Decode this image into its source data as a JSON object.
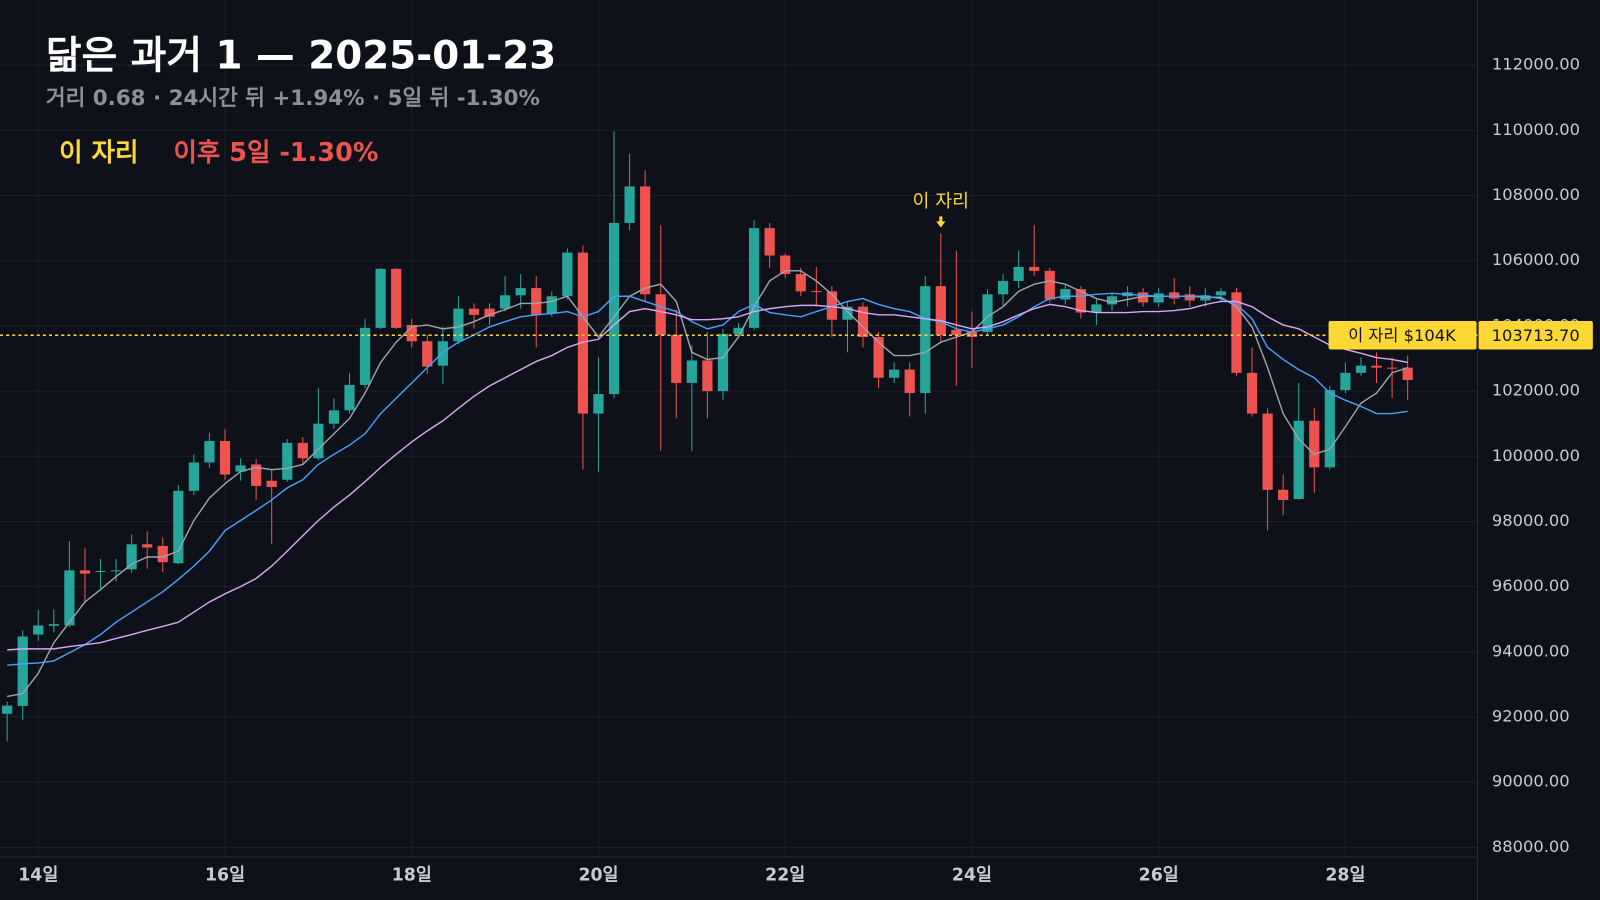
{
  "chart_data": {
    "type": "candlestick",
    "title": "닮은 과거 1 — 2025-01-23",
    "subtitle": "거리 0.68 · 24시간 뒤 +1.94% · 5일 뒤 -1.30%",
    "legend_label": "이 자리",
    "legend_note": "이후 5일 -1.30%",
    "categories": [
      null,
      null,
      "14일",
      null,
      null,
      null,
      null,
      null,
      null,
      null,
      null,
      null,
      null,
      null,
      "16일",
      null,
      null,
      null,
      null,
      null,
      null,
      null,
      null,
      null,
      null,
      null,
      "18일",
      null,
      null,
      null,
      null,
      null,
      null,
      null,
      null,
      null,
      null,
      null,
      "20일",
      null,
      null,
      null,
      null,
      null,
      null,
      null,
      null,
      null,
      null,
      null,
      "22일",
      null,
      null,
      null,
      null,
      null,
      null,
      null,
      null,
      null,
      null,
      null,
      "24일",
      null,
      null,
      null,
      null,
      null,
      null,
      null,
      null,
      null,
      null,
      null,
      "26일",
      null,
      null,
      null,
      null,
      null,
      null,
      null,
      null,
      null,
      null,
      null,
      "28일",
      null,
      null,
      null,
      null
    ],
    "open": [
      92100,
      92340,
      94530,
      94800,
      94810,
      96500,
      96450,
      96480,
      96530,
      97300,
      97250,
      96720,
      98940,
      99810,
      100470,
      99530,
      99750,
      99250,
      99280,
      100410,
      99940,
      101000,
      101410,
      102190,
      103940,
      105750,
      104030,
      103530,
      102780,
      103530,
      104530,
      104530,
      104530,
      104940,
      105160,
      104380,
      104910,
      106250,
      101310,
      101910,
      107160,
      108280,
      104970,
      103720,
      102250,
      102940,
      102000,
      103750,
      103940,
      107000,
      106160,
      105590,
      105070,
      105060,
      104190,
      104590,
      103660,
      102410,
      102660,
      101940,
      105220,
      103880,
      103810,
      103810,
      104970,
      105380,
      105810,
      105690,
      104810,
      105130,
      104410,
      104660,
      104910,
      105030,
      104720,
      105030,
      104970,
      104780,
      104940,
      105030,
      102560,
      101310,
      98970,
      98690,
      101090,
      99660,
      102030,
      102560,
      102780,
      102720,
      102720
    ],
    "high": [
      92470,
      94660,
      95280,
      95300,
      97400,
      97200,
      96850,
      96850,
      97600,
      97700,
      97500,
      99120,
      100060,
      100720,
      100840,
      99940,
      99910,
      99590,
      100530,
      100590,
      102090,
      101780,
      102560,
      104220,
      105780,
      105780,
      104220,
      103720,
      103970,
      104910,
      104690,
      104690,
      105530,
      105590,
      105530,
      105060,
      106380,
      106470,
      103030,
      109970,
      109280,
      108780,
      107090,
      104500,
      103410,
      103810,
      103910,
      104090,
      107250,
      107160,
      106220,
      105780,
      105810,
      105220,
      104720,
      104720,
      103810,
      102880,
      102880,
      105530,
      106840,
      106310,
      104440,
      105130,
      105590,
      106310,
      107090,
      105780,
      105280,
      105220,
      104840,
      105030,
      105220,
      105160,
      105160,
      105470,
      105220,
      105160,
      105160,
      105160,
      103340,
      101470,
      99440,
      102250,
      101470,
      102160,
      102880,
      103030,
      103190,
      103030,
      103090
    ],
    "low": [
      91250,
      91900,
      94340,
      94600,
      94750,
      95500,
      95900,
      96150,
      96430,
      96550,
      96450,
      96690,
      98810,
      99650,
      99280,
      99250,
      98660,
      97310,
      99220,
      99750,
      99880,
      100840,
      101310,
      102090,
      103910,
      103910,
      103340,
      102530,
      102220,
      103440,
      103910,
      104030,
      104440,
      104530,
      103340,
      104280,
      104810,
      99590,
      99530,
      101780,
      106940,
      104750,
      100160,
      101160,
      100160,
      101160,
      101720,
      103660,
      103880,
      105780,
      105470,
      104910,
      104590,
      103660,
      103190,
      103340,
      102090,
      102250,
      101220,
      101310,
      103470,
      102160,
      102720,
      103720,
      104590,
      105160,
      105530,
      104720,
      104660,
      104220,
      104030,
      104470,
      104590,
      104590,
      104590,
      104660,
      104590,
      104590,
      104720,
      102470,
      101220,
      97720,
      98190,
      98660,
      98880,
      99590,
      101940,
      102470,
      102250,
      101780,
      101720
    ],
    "close": [
      92350,
      94470,
      94810,
      94850,
      96500,
      96400,
      96480,
      96500,
      97300,
      97200,
      96750,
      98940,
      99810,
      100470,
      99440,
      99720,
      99090,
      99060,
      100410,
      99940,
      101000,
      101410,
      102190,
      103940,
      105750,
      103940,
      103530,
      102750,
      103530,
      104530,
      104340,
      104280,
      104940,
      105160,
      104340,
      104910,
      106250,
      101310,
      101910,
      107160,
      108280,
      104970,
      103720,
      102250,
      102940,
      102000,
      103750,
      103940,
      107000,
      106160,
      105590,
      105060,
      105060,
      104190,
      104590,
      103660,
      102410,
      102660,
      101940,
      105220,
      103720,
      103720,
      103660,
      104970,
      105380,
      105810,
      105690,
      104810,
      105130,
      104410,
      104660,
      104910,
      105030,
      104720,
      105000,
      104840,
      104780,
      104940,
      105060,
      102560,
      101310,
      98970,
      98660,
      101090,
      99660,
      102030,
      102560,
      102780,
      102720,
      102690,
      102340
    ],
    "up_color": "#26a69a",
    "down_color": "#ef5350",
    "lines": [
      {
        "color": "#9ea3ab",
        "values": [
          92630,
          92720,
          93340,
          94280,
          94910,
          95530,
          95910,
          96310,
          96690,
          96910,
          96910,
          97090,
          98030,
          98720,
          99160,
          99530,
          99660,
          99590,
          99630,
          99750,
          100220,
          100690,
          101160,
          101940,
          102880,
          103500,
          103970,
          104030,
          103910,
          103970,
          104130,
          104340,
          104500,
          104690,
          104690,
          104750,
          104910,
          104280,
          103660,
          104280,
          104910,
          105160,
          105280,
          104750,
          103190,
          102970,
          103030,
          103660,
          104590,
          105380,
          105690,
          105690,
          105380,
          104970,
          104440,
          103970,
          103500,
          103090,
          103090,
          103190,
          103500,
          103660,
          103810,
          104280,
          104590,
          105060,
          105280,
          105380,
          105280,
          105060,
          104840,
          104720,
          104810,
          104910,
          104910,
          104910,
          104910,
          104880,
          104880,
          104590,
          103970,
          102720,
          101310,
          100530,
          100060,
          100220,
          100910,
          101630,
          101940,
          102560,
          102720
        ]
      },
      {
        "color": "#4a9eff",
        "values": [
          93590,
          93630,
          93660,
          93720,
          93970,
          94220,
          94530,
          94910,
          95220,
          95530,
          95840,
          96220,
          96630,
          97090,
          97720,
          98030,
          98340,
          98660,
          99030,
          99280,
          99750,
          100060,
          100340,
          100690,
          101310,
          101780,
          102250,
          102720,
          103190,
          103500,
          103720,
          103970,
          104130,
          104280,
          104340,
          104380,
          104440,
          104280,
          104440,
          104910,
          104910,
          104750,
          104590,
          104440,
          104130,
          103910,
          104030,
          104440,
          104660,
          104410,
          104340,
          104280,
          104440,
          104590,
          104750,
          104840,
          104660,
          104530,
          104440,
          104220,
          104130,
          103910,
          103810,
          103910,
          104030,
          104280,
          104590,
          104840,
          104910,
          104910,
          104970,
          105000,
          104970,
          104940,
          104910,
          104910,
          104910,
          104910,
          104840,
          104660,
          104220,
          103340,
          102970,
          102660,
          102410,
          101940,
          101720,
          101530,
          101310,
          101310,
          101380
        ]
      },
      {
        "color": "#d7a6f0",
        "values": [
          94060,
          94090,
          94090,
          94090,
          94160,
          94220,
          94280,
          94410,
          94530,
          94660,
          94780,
          94910,
          95220,
          95530,
          95780,
          96000,
          96250,
          96630,
          97090,
          97560,
          98030,
          98440,
          98810,
          99220,
          99660,
          100060,
          100440,
          100780,
          101090,
          101470,
          101840,
          102160,
          102410,
          102660,
          102910,
          103090,
          103340,
          103500,
          103590,
          104030,
          104440,
          104530,
          104440,
          104340,
          104190,
          104190,
          104220,
          104280,
          104440,
          104530,
          104590,
          104630,
          104630,
          104590,
          104530,
          104410,
          104340,
          104340,
          104280,
          104220,
          104160,
          104030,
          103910,
          103970,
          104130,
          104340,
          104530,
          104660,
          104590,
          104470,
          104410,
          104410,
          104410,
          104440,
          104440,
          104470,
          104530,
          104660,
          104750,
          104750,
          104590,
          104280,
          104030,
          103910,
          103660,
          103410,
          103280,
          103160,
          103030,
          102970,
          102880
        ]
      }
    ],
    "ylim": [
      87700,
      114000
    ],
    "yticks": [
      {
        "value": 88000,
        "label": "88000.00"
      },
      {
        "value": 90000,
        "label": "90000.00"
      },
      {
        "value": 92000,
        "label": "92000.00"
      },
      {
        "value": 94000,
        "label": "94000.00"
      },
      {
        "value": 96000,
        "label": "96000.00"
      },
      {
        "value": 98000,
        "label": "98000.00"
      },
      {
        "value": 100000,
        "label": "100000.00"
      },
      {
        "value": 102000,
        "label": "102000.00"
      },
      {
        "value": 104000,
        "label": "104000.00"
      },
      {
        "value": 106000,
        "label": "106000.00"
      },
      {
        "value": 108000,
        "label": "108000.00"
      },
      {
        "value": 110000,
        "label": "110000.00"
      },
      {
        "value": 112000,
        "label": "112000.00"
      }
    ],
    "grid": true,
    "price_line": {
      "value": 103713.7,
      "label": "103713.70",
      "tag": "이 자리 $104K",
      "color": "#fdd835"
    },
    "marker": {
      "index": 60,
      "text": "이 자리"
    }
  }
}
